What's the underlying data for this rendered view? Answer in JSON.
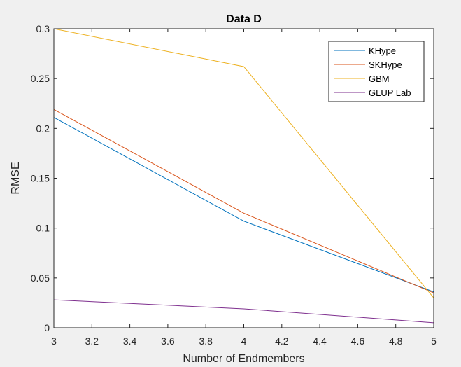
{
  "chart_data": {
    "type": "line",
    "title": "Data D",
    "xlabel": "Number of Endmembers",
    "ylabel": "RMSE",
    "xlim": [
      3,
      5
    ],
    "ylim": [
      0,
      0.3
    ],
    "xticks": [
      "3",
      "3.2",
      "3.4",
      "3.6",
      "3.8",
      "4",
      "4.2",
      "4.4",
      "4.6",
      "4.8",
      "5"
    ],
    "yticks": [
      "0",
      "0.05",
      "0.1",
      "0.15",
      "0.2",
      "0.25",
      "0.3"
    ],
    "grid": false,
    "legend_position": "top-right",
    "x": [
      3,
      4,
      5
    ],
    "series": [
      {
        "name": "KHype",
        "color": "#0072bd",
        "values": [
          0.211,
          0.107,
          0.036
        ]
      },
      {
        "name": "SKHype",
        "color": "#d95319",
        "values": [
          0.219,
          0.115,
          0.035
        ]
      },
      {
        "name": "GBM",
        "color": "#edb120",
        "values": [
          0.3,
          0.262,
          0.03
        ]
      },
      {
        "name": "GLUP Lab",
        "color": "#7e2f8e",
        "values": [
          0.028,
          0.019,
          0.005
        ]
      }
    ]
  }
}
